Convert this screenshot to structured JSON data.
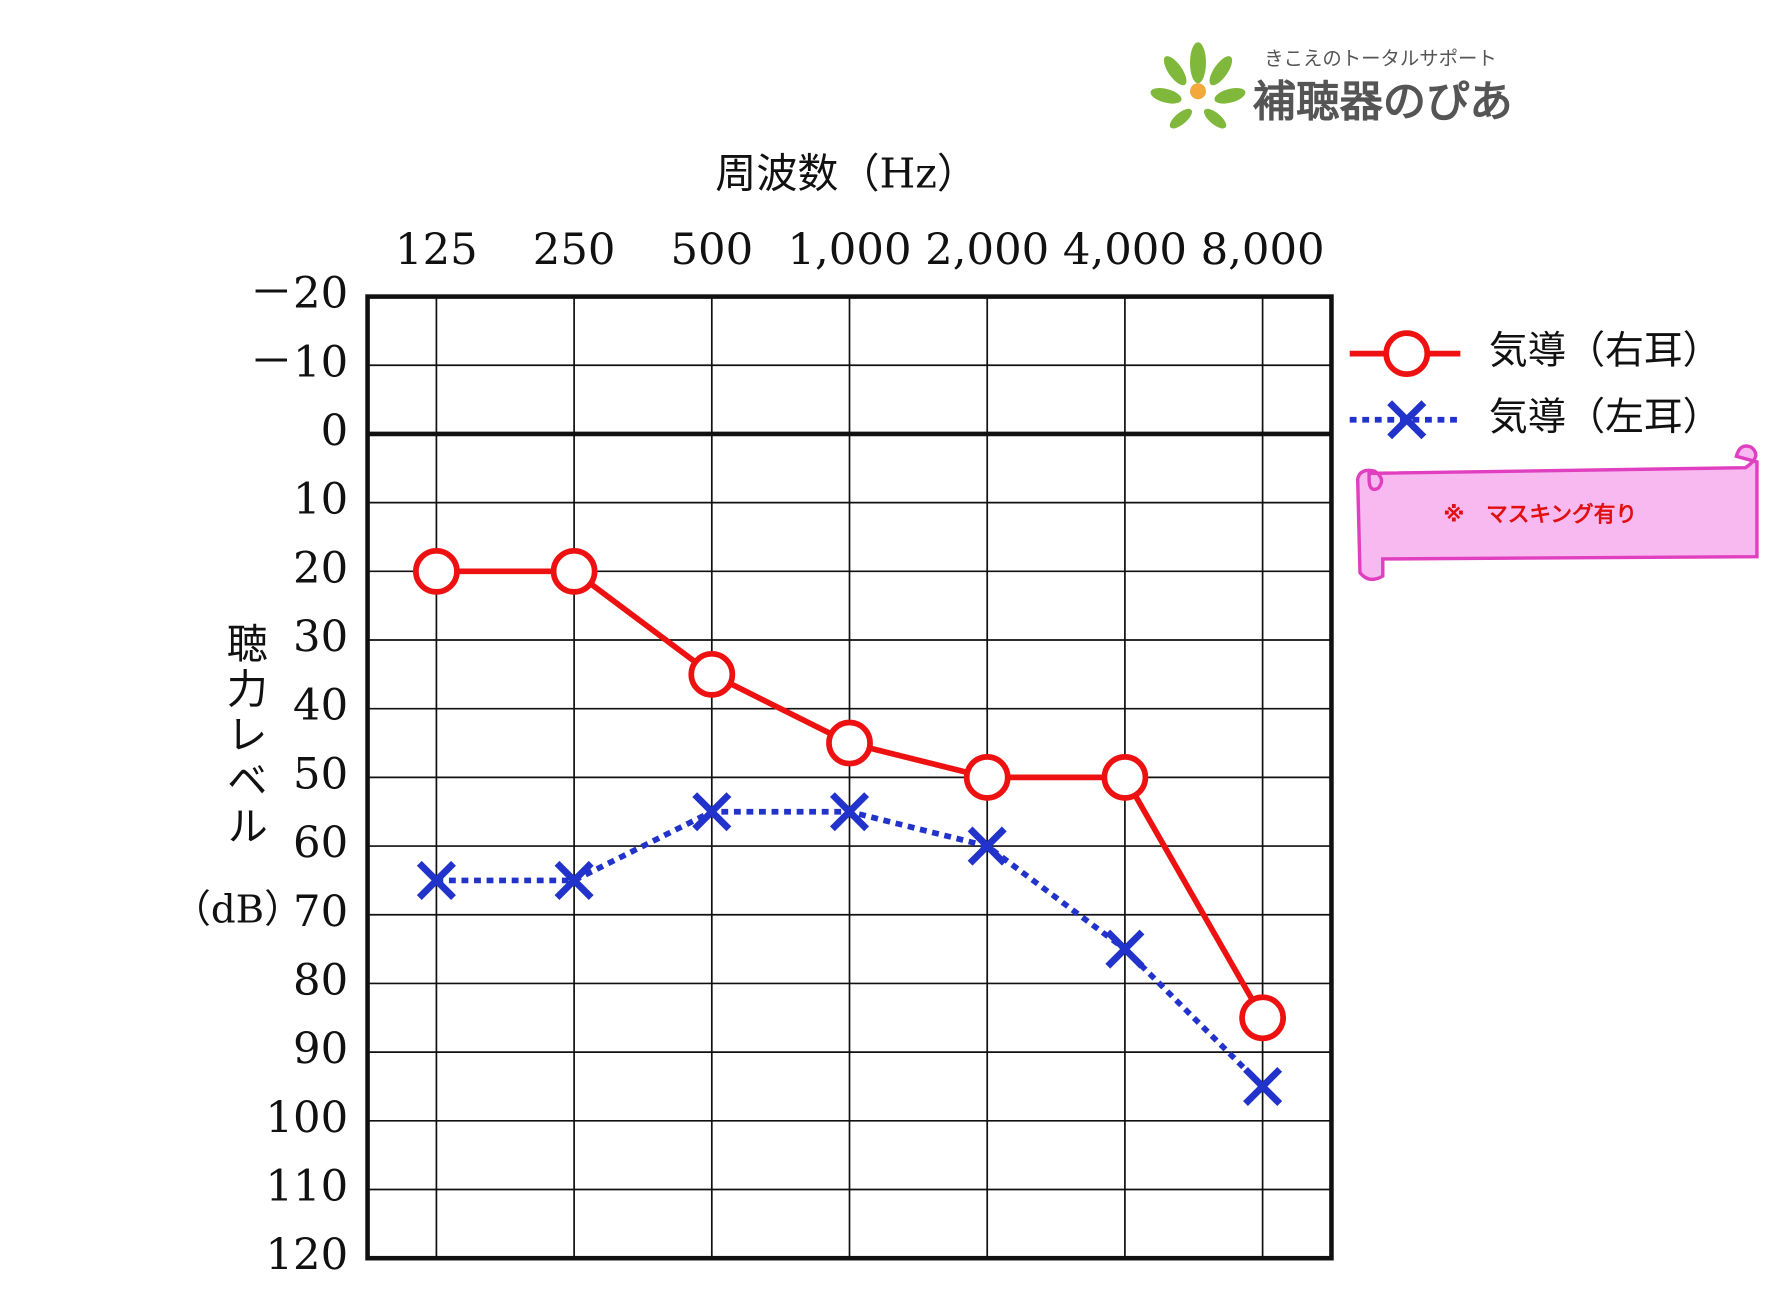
{
  "chart_data": {
    "type": "line",
    "title": "周波数（Hz）",
    "ylabel": "聴力レベル",
    "ylabel_unit": "（dB）",
    "categories": [
      "125",
      "250",
      "500",
      "1,000",
      "2,000",
      "4,000",
      "8,000"
    ],
    "series": [
      {
        "name": "気導（右耳）",
        "color": "#ee1111",
        "marker": "o",
        "line_style": "solid",
        "values": [
          20,
          20,
          35,
          45,
          50,
          50,
          85
        ]
      },
      {
        "name": "気導（左耳）",
        "color": "#2233cc",
        "marker": "x",
        "line_style": "dotted",
        "values": [
          65,
          65,
          55,
          55,
          60,
          75,
          95
        ]
      }
    ],
    "ylim": [
      -20,
      120
    ],
    "y_inverted": true,
    "yticks": [
      {
        "value": -20,
        "label": "－20"
      },
      {
        "value": -10,
        "label": "－10"
      },
      0,
      10,
      20,
      30,
      40,
      50,
      60,
      70,
      80,
      90,
      100,
      110,
      120
    ],
    "grid": true,
    "note": "※　マスキング有り",
    "logo": {
      "tagline": "きこえのトータルサポート",
      "name": "補聴器のぴあ"
    }
  }
}
